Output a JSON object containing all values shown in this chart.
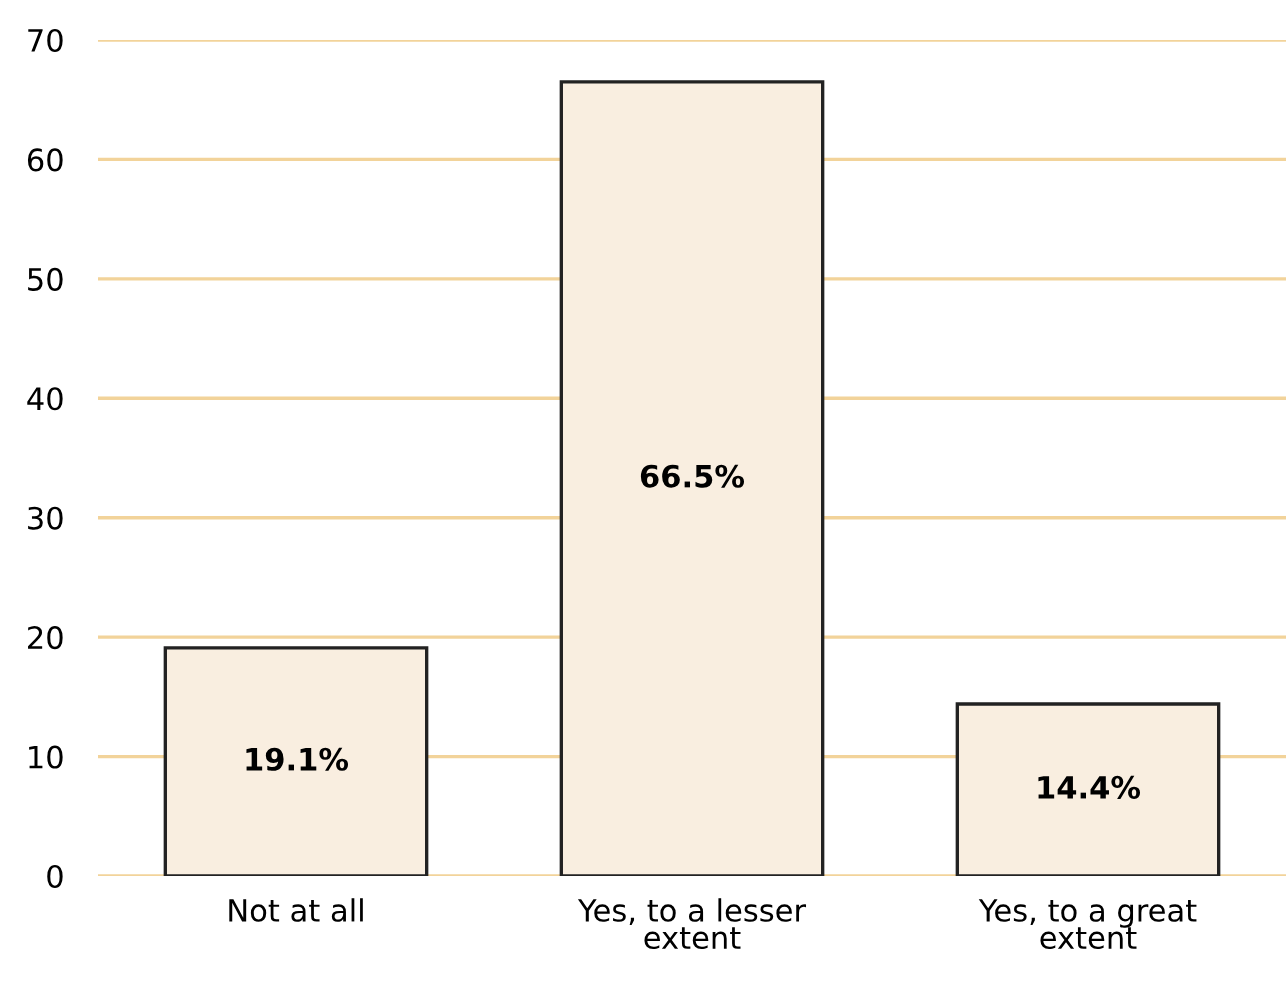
{
  "chart_data": {
    "type": "bar",
    "categories": [
      "Not at all",
      "Yes, to a lesser\nextent",
      "Yes, to a great\nextent"
    ],
    "values": [
      19.1,
      66.5,
      14.4
    ],
    "value_labels": [
      "19.1%",
      "66.5%",
      "14.4%"
    ],
    "color": "#f9eee0",
    "ylim": [
      0,
      70
    ],
    "yticks": [
      0,
      10,
      20,
      30,
      40,
      50,
      60,
      70
    ],
    "grid": "y"
  }
}
